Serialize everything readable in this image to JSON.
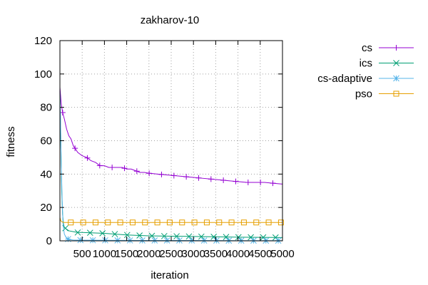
{
  "chart_data": {
    "type": "line",
    "title": "zakharov-10",
    "xlabel": "iteration",
    "ylabel": "fitness",
    "xlim": [
      0,
      5000
    ],
    "ylim": [
      0,
      120
    ],
    "x_ticks": [
      500,
      1000,
      1500,
      2000,
      2500,
      3000,
      3500,
      4000,
      4500,
      5000
    ],
    "y_ticks": [
      0,
      20,
      40,
      60,
      80,
      100,
      120
    ],
    "grid": true,
    "legend_position": "outside-right",
    "series": [
      {
        "name": "cs",
        "color": "#9400d3",
        "marker": "plus",
        "x": [
          0,
          30,
          60,
          100,
          150,
          200,
          250,
          300,
          350,
          400,
          450,
          500,
          600,
          700,
          800,
          900,
          1000,
          1100,
          1200,
          1300,
          1400,
          1500,
          1600,
          1700,
          1800,
          1900,
          2000,
          2200,
          2400,
          2600,
          2800,
          3000,
          3200,
          3400,
          3600,
          3800,
          4000,
          4200,
          4400,
          4600,
          4800,
          5000
        ],
        "y": [
          92,
          82,
          77,
          73,
          67,
          63,
          61,
          57,
          55,
          53,
          52,
          51,
          50,
          48,
          47,
          45,
          45,
          44,
          44,
          44,
          44,
          43,
          43,
          42,
          41,
          41,
          40.5,
          40,
          39.5,
          39,
          38.5,
          38,
          37.5,
          37,
          36.5,
          36,
          35.5,
          35,
          35,
          35,
          34.5,
          34
        ]
      },
      {
        "name": "ics",
        "color": "#009e73",
        "marker": "cross",
        "x": [
          0,
          20,
          40,
          60,
          80,
          100,
          150,
          200,
          300,
          400,
          500,
          700,
          1000,
          1500,
          2000,
          2500,
          3000,
          3500,
          4000,
          4500,
          5000
        ],
        "y": [
          90,
          60,
          30,
          16,
          10,
          8,
          7,
          6,
          5.5,
          5,
          5,
          4.8,
          4.5,
          3.5,
          3,
          2.8,
          2.6,
          2.4,
          2.2,
          2.1,
          2
        ]
      },
      {
        "name": "cs-adaptive",
        "color": "#56b4e9",
        "marker": "star",
        "x": [
          0,
          15,
          30,
          50,
          70,
          100,
          150,
          200,
          300,
          500,
          1000,
          2000,
          3000,
          4000,
          5000
        ],
        "y": [
          90,
          70,
          45,
          25,
          10,
          4,
          1.5,
          0.8,
          0.5,
          0.4,
          0.3,
          0.2,
          0.2,
          0.1,
          0.1
        ]
      },
      {
        "name": "pso",
        "color": "#e69f00",
        "marker": "square",
        "x": [
          0,
          20,
          40,
          60,
          100,
          200,
          5000
        ],
        "y": [
          14,
          12,
          11.5,
          11.2,
          11,
          11,
          11
        ]
      }
    ]
  }
}
